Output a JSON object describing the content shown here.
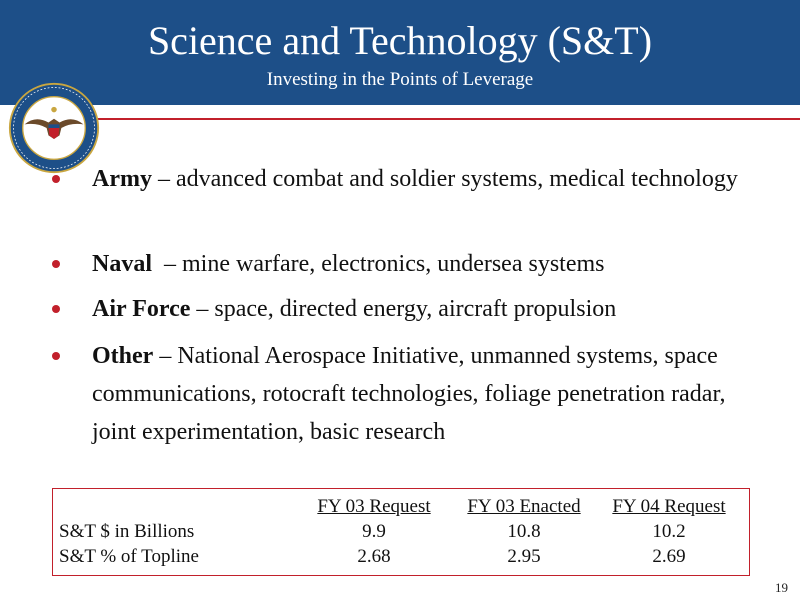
{
  "header": {
    "title": "Science and Technology (S&T)",
    "subtitle": "Investing in the Points of Leverage"
  },
  "logo": {
    "icon": "department-of-defense-seal",
    "text": "DEPARTMENT OF DEFENSE · UNITED STATES OF AMERICA"
  },
  "colors": {
    "header_bg": "#1d4f88",
    "accent": "#c2202b"
  },
  "bullets": [
    {
      "term": "Army",
      "description": " – advanced combat and soldier systems, medical technology"
    },
    {
      "term": "Naval",
      "description": "  – mine warfare, electronics, undersea systems"
    },
    {
      "term": "Air Force",
      "description": " – space, directed energy, aircraft propulsion"
    },
    {
      "term": "Other",
      "description": " – National Aerospace Initiative, unmanned systems, space communications, rotocraft technologies, foliage penetration radar, joint experimentation, basic research"
    }
  ],
  "budget_table": {
    "columns": [
      "",
      "FY 03 Request",
      "FY 03 Enacted",
      "FY 04 Request"
    ],
    "rows": [
      [
        "S&T $ in Billions",
        "9.9",
        "10.8",
        "10.2"
      ],
      [
        "S&T % of Topline",
        "2.68",
        "2.95",
        "2.69"
      ]
    ]
  },
  "page_number": "19"
}
